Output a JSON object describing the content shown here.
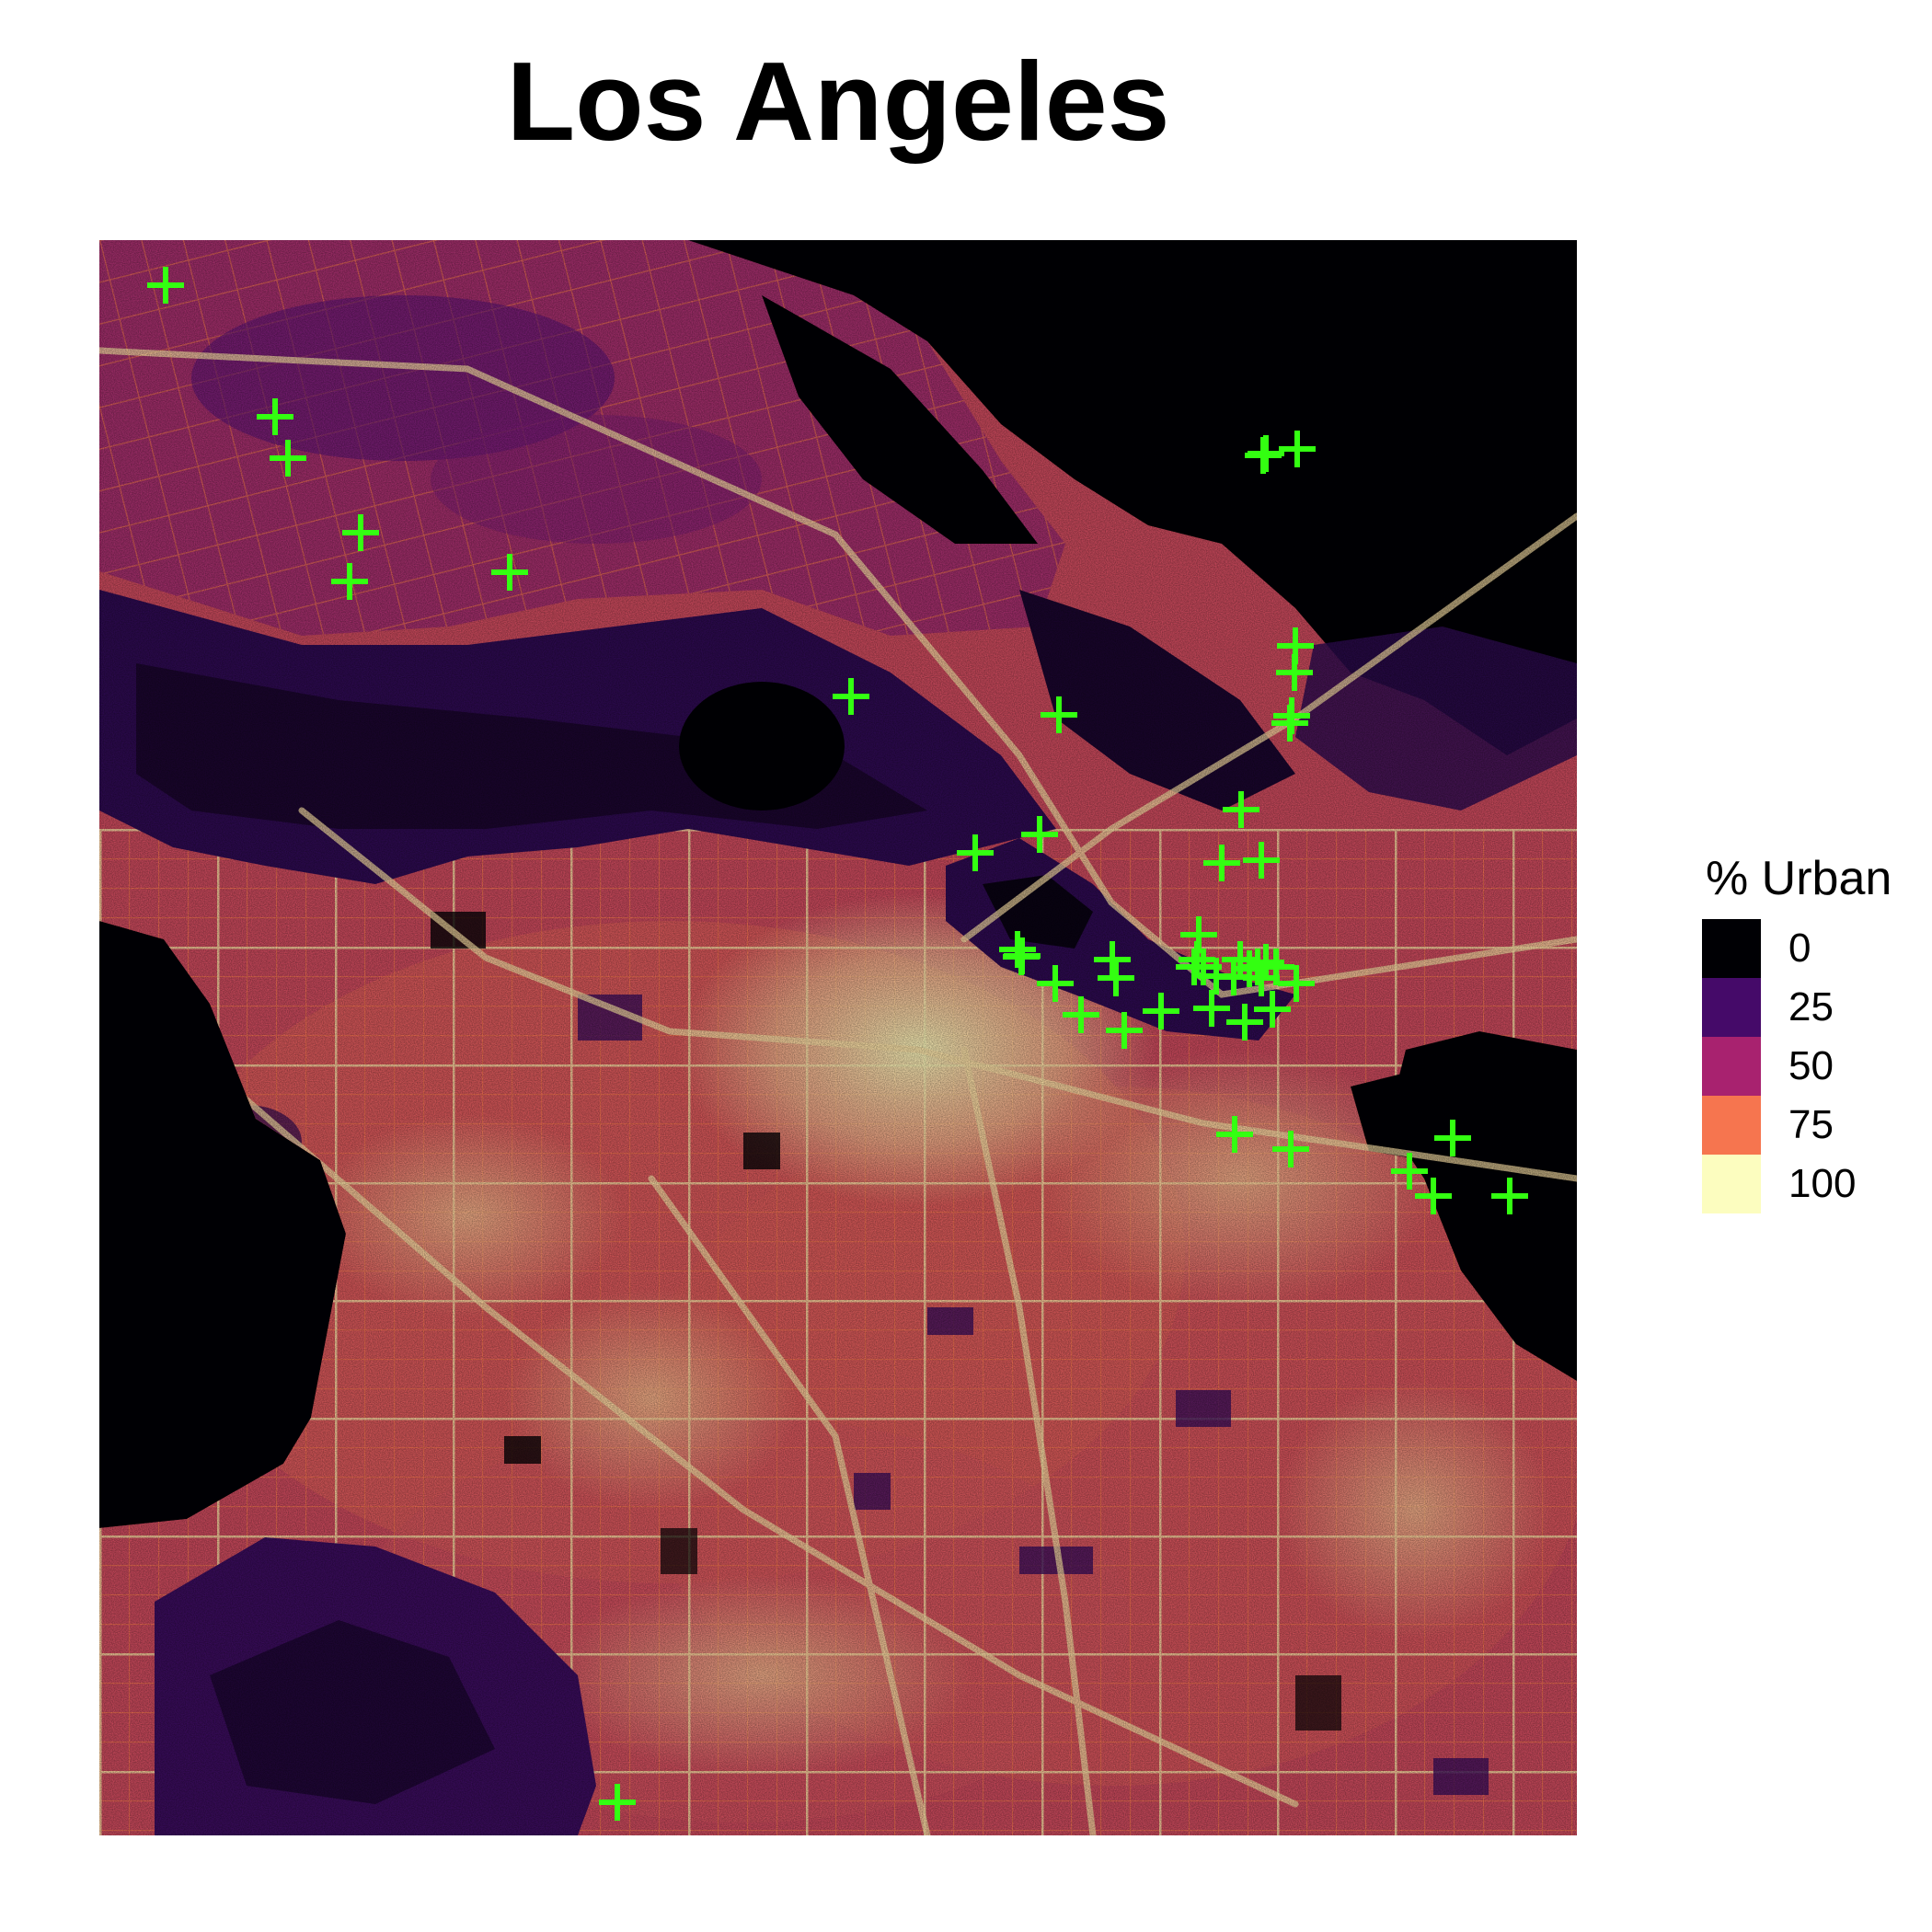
{
  "map": {
    "title": "Los Angeles",
    "layer": "urban-percentage-raster",
    "marker_color": "#33ff11",
    "marker_symbol": "plus-marker",
    "site_count": 52
  },
  "legend": {
    "title": "% Urban",
    "items": [
      {
        "label": "0",
        "color": "#000004"
      },
      {
        "label": "25",
        "color": "#450a69"
      },
      {
        "label": "50",
        "color": "#a8226f"
      },
      {
        "label": "75",
        "color": "#f6754f"
      },
      {
        "label": "100",
        "color": "#fcfdbf"
      }
    ]
  }
}
